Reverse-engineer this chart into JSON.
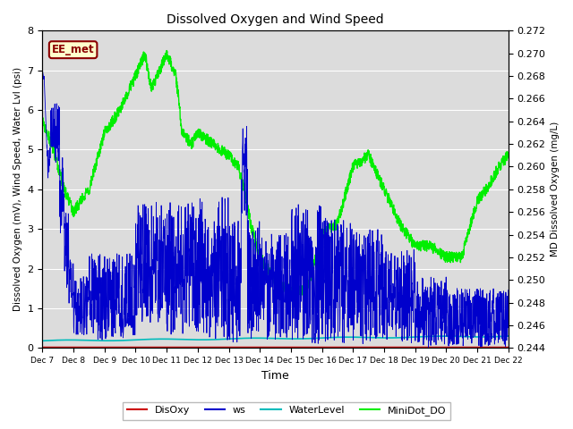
{
  "title": "Dissolved Oxygen and Wind Speed",
  "ylabel_left": "Dissolved Oxygen (mV), Wind Speed, Water Lvl (psi)",
  "ylabel_right": "MD Dissolved Oxygen (mg/L)",
  "xlabel": "Time",
  "ylim_left": [
    0.0,
    8.0
  ],
  "ylim_right": [
    0.244,
    0.272
  ],
  "annotation_text": "EE_met",
  "annotation_color": "#8B0000",
  "background_color": "#dcdcdc",
  "xtick_labels": [
    "Dec 7",
    "Dec 8",
    "Dec 9",
    "Dec 10",
    "Dec 11",
    "Dec 12",
    "Dec 13",
    "Dec 14",
    "Dec 15",
    "Dec 16",
    "Dec 17",
    "Dec 18",
    "Dec 19",
    "Dec 20",
    "Dec 21",
    "Dec 22"
  ],
  "legend_entries": [
    "DisOxy",
    "ws",
    "WaterLevel",
    "MiniDot_DO"
  ],
  "legend_colors": [
    "#cc0000",
    "#0000cc",
    "#00bbbb",
    "#00ee00"
  ],
  "line_colors": {
    "DisOxy": "#cc0000",
    "ws": "#0000cc",
    "WaterLevel": "#00bbbb",
    "MiniDot_DO": "#00ee00"
  },
  "yticks_left": [
    0.0,
    1.0,
    2.0,
    3.0,
    4.0,
    5.0,
    6.0,
    7.0,
    8.0
  ],
  "yticks_right": [
    0.244,
    0.246,
    0.248,
    0.25,
    0.252,
    0.254,
    0.256,
    0.258,
    0.26,
    0.262,
    0.264,
    0.266,
    0.268,
    0.27,
    0.272
  ]
}
